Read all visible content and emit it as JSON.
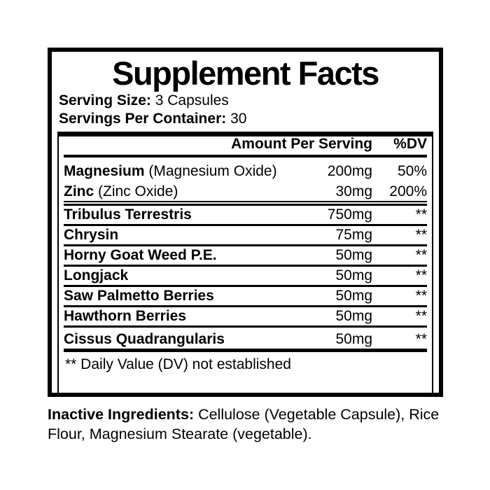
{
  "label": {
    "title": "Supplement Facts",
    "serving_size_label": "Serving Size:",
    "serving_size_value": " 3 Capsules",
    "servings_per_container_label": "Servings Per Container:",
    "servings_per_container_value": " 30",
    "table": {
      "header": {
        "amount": "Amount Per Serving",
        "dv": "%DV"
      },
      "rows": [
        {
          "name": "Magnesium",
          "detail": " (Magnesium Oxide)",
          "amount": "200mg",
          "dv": "50%"
        },
        {
          "name": "Zinc",
          "detail": " (Zinc Oxide)",
          "amount": "30mg",
          "dv": "200%"
        },
        {
          "name": "Tribulus Terrestris",
          "detail": "",
          "amount": "750mg",
          "dv": "**"
        },
        {
          "name": "Chrysin",
          "detail": "",
          "amount": "75mg",
          "dv": "**"
        },
        {
          "name": "Horny Goat Weed P.E.",
          "detail": "",
          "amount": "50mg",
          "dv": "**"
        },
        {
          "name": "Longjack",
          "detail": "",
          "amount": "50mg",
          "dv": "**"
        },
        {
          "name": "Saw Palmetto Berries",
          "detail": "",
          "amount": "50mg",
          "dv": "**"
        },
        {
          "name": "Hawthorn Berries",
          "detail": "",
          "amount": "50mg",
          "dv": "**"
        },
        {
          "name": "Cissus Quadrangularis",
          "detail": "",
          "amount": "50mg",
          "dv": "**"
        }
      ],
      "footnote": "** Daily Value (DV) not established"
    },
    "inactive_label": "Inactive Ingredients:",
    "inactive_text": " Cellulose (Vegetable Capsule), Rice Flour, Magnesium Stearate (vegetable).",
    "colors": {
      "ink": "#000000",
      "background": "#ffffff"
    }
  }
}
